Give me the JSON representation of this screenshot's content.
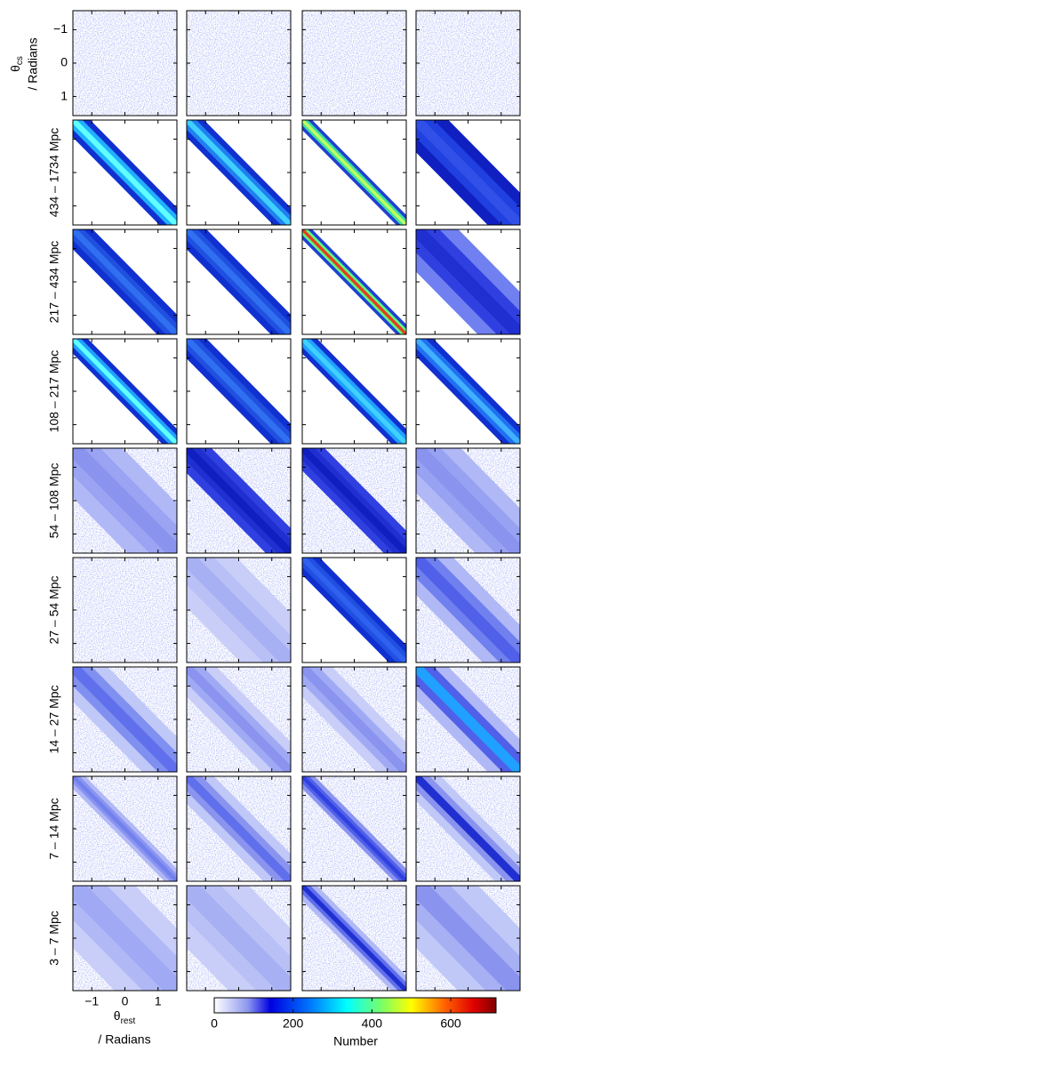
{
  "chart_data": {
    "type": "heatmap-grid",
    "y_label": {
      "symbol": "θ",
      "subscript": "cs",
      "unit": "/ Radians"
    },
    "x_label": {
      "symbol": "θ",
      "subscript": "rest",
      "unit": "/ Radians"
    },
    "row_labels": [
      null,
      "434 – 1734 Mpc",
      "217 – 434 Mpc",
      "108 – 217 Mpc",
      "54 – 108 Mpc",
      "27 – 54 Mpc",
      "14 – 27 Mpc",
      "7 – 14 Mpc",
      "3 – 7 Mpc"
    ],
    "xlim": [
      -1.57,
      1.57
    ],
    "xticks": [
      {
        "value": -1,
        "label": "−1"
      },
      0,
      1
    ],
    "ylim": [
      -1.57,
      1.57
    ],
    "yticks": [
      {
        "value": -1,
        "label": "−1"
      },
      0,
      1
    ],
    "y_reversed": true,
    "colorbar": {
      "label": "Number",
      "lim": [
        0,
        715
      ],
      "ticks": [
        0,
        200,
        400,
        600
      ]
    }
  }
}
